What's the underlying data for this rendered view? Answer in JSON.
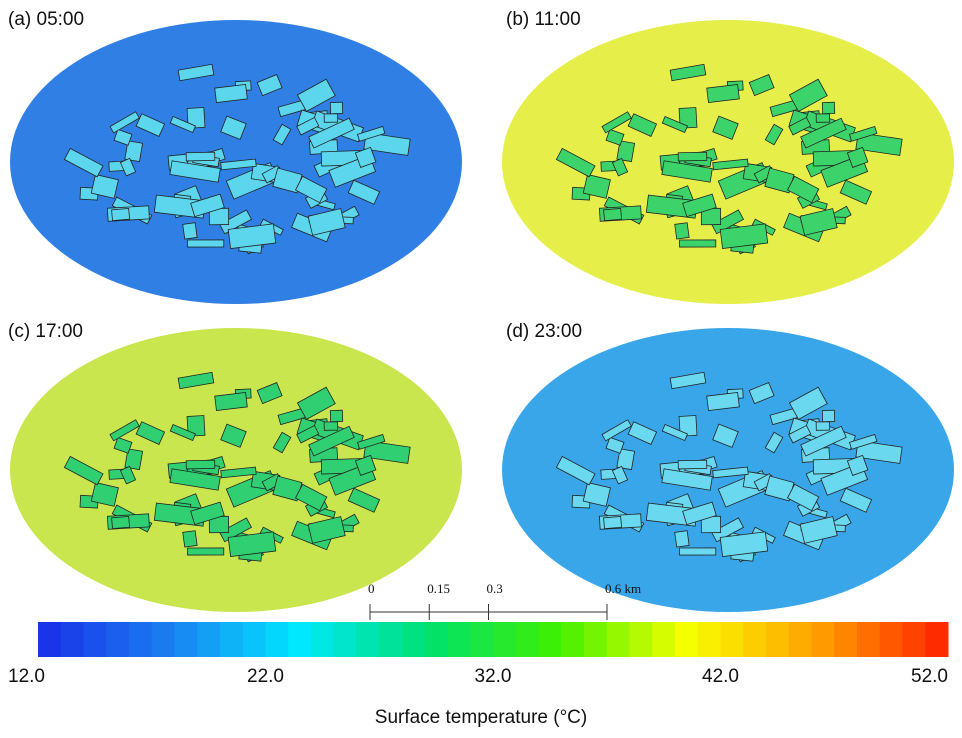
{
  "panels": [
    {
      "label": "(a) 05:00",
      "ground_color": "#2f7fe4",
      "building_color": "#5cd6ec"
    },
    {
      "label": "(b) 11:00",
      "ground_color": "#e6ef4a",
      "building_color": "#3cd46a"
    },
    {
      "label": "(c) 17:00",
      "ground_color": "#c9e64e",
      "building_color": "#2fcf72"
    },
    {
      "label": "(d) 23:00",
      "ground_color": "#3aa6ea",
      "building_color": "#6ad8ee"
    }
  ],
  "scale_bar": {
    "lim": [
      0,
      0.6
    ],
    "ticks": [
      0,
      0.15,
      0.3,
      {
        "value": 0.6,
        "label": "0.6 km"
      }
    ]
  },
  "colorbar": {
    "lim": [
      12,
      52
    ],
    "ticks": [
      {
        "value": 12,
        "label": "12.0"
      },
      {
        "value": 22,
        "label": "22.0"
      },
      {
        "value": 32,
        "label": "32.0"
      },
      {
        "value": 42,
        "label": "42.0"
      },
      {
        "value": 52,
        "label": "52.0"
      }
    ],
    "label": "Surface temperature (°C)",
    "colormap": [
      "#1a2ee8",
      "#1a7ef0",
      "#00e8ff",
      "#00e070",
      "#40f000",
      "#f8ff00",
      "#ffa000",
      "#ff2000"
    ]
  }
}
